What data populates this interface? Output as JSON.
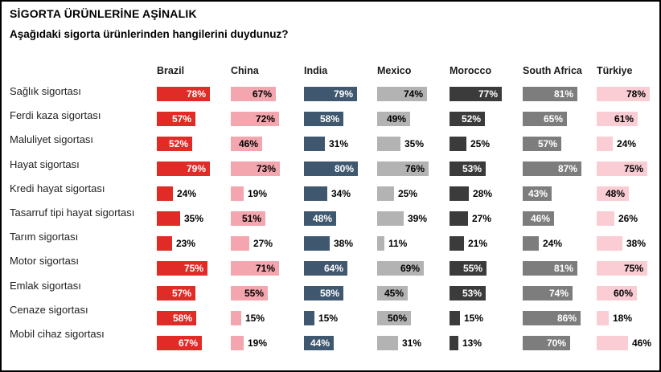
{
  "header": {
    "title": "SİGORTA ÜRÜNLERİNE AŞİNALIK",
    "subtitle": "Aşağıdaki sigorta ürünlerinden hangilerini duydunuz?"
  },
  "chart_data": {
    "type": "bar",
    "orientation": "horizontal",
    "unit": "%",
    "xlim": [
      0,
      100
    ],
    "grid": false,
    "legend_position": "column-headers-top",
    "categories": [
      "Sağlık sigortası",
      "Ferdi kaza sigortası",
      "Maluliyet sigortası",
      "Hayat sigortası",
      "Kredi hayat sigortası",
      "Tasarruf tipi hayat sigortası",
      "Tarım sigortası",
      "Motor sigortası",
      "Emlak sigortası",
      "Cenaze sigortası",
      "Mobil cihaz sigortası"
    ],
    "series": [
      {
        "name": "Brazil",
        "color": "#e02b26",
        "label_color": "#ffffff",
        "values": [
          78,
          57,
          52,
          79,
          24,
          35,
          23,
          75,
          57,
          58,
          67
        ]
      },
      {
        "name": "China",
        "color": "#f3a6ae",
        "label_color": "#000000",
        "values": [
          67,
          72,
          46,
          73,
          19,
          51,
          27,
          71,
          55,
          15,
          19
        ]
      },
      {
        "name": "India",
        "color": "#3f576f",
        "label_color": "#ffffff",
        "values": [
          79,
          58,
          31,
          80,
          34,
          48,
          38,
          64,
          58,
          15,
          44
        ]
      },
      {
        "name": "Mexico",
        "color": "#b3b3b3",
        "label_color": "#000000",
        "values": [
          74,
          49,
          35,
          76,
          25,
          39,
          11,
          69,
          45,
          50,
          31
        ]
      },
      {
        "name": "Morocco",
        "color": "#3b3b3b",
        "label_color": "#ffffff",
        "values": [
          77,
          52,
          25,
          53,
          28,
          27,
          21,
          55,
          53,
          15,
          13
        ]
      },
      {
        "name": "South Africa",
        "color": "#7d7d7d",
        "label_color": "#ffffff",
        "values": [
          81,
          65,
          57,
          87,
          43,
          46,
          24,
          81,
          74,
          86,
          70
        ]
      },
      {
        "name": "Türkiye",
        "color": "#f9cdd3",
        "label_color": "#000000",
        "values": [
          78,
          61,
          24,
          75,
          48,
          26,
          38,
          75,
          60,
          18,
          46
        ]
      }
    ],
    "value_labels": {
      "suffix": "%",
      "inside_min": 43,
      "outside_exceptions": [
        [
          10,
          6
        ]
      ]
    }
  }
}
